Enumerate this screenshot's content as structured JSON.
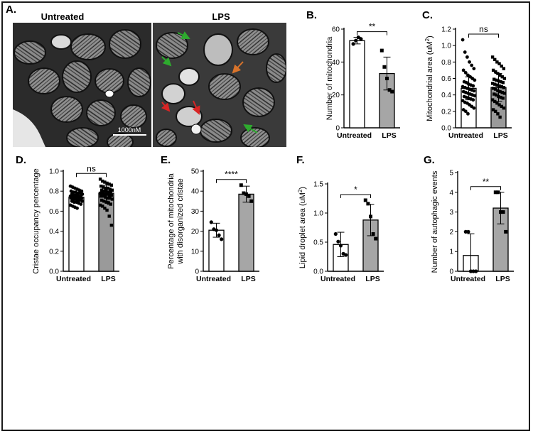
{
  "micrograph": {
    "panel_label": "A.",
    "left_title": "Untreated",
    "right_title": "LPS",
    "scale_bar": "1000nM"
  },
  "chart_data": [
    {
      "panel": "B.",
      "type": "bar",
      "categories": [
        "Untreated",
        "LPS"
      ],
      "values": [
        53,
        33
      ],
      "error": [
        2,
        10
      ],
      "points": [
        [
          51,
          53,
          55,
          54
        ],
        [
          47,
          37,
          30,
          23,
          22
        ]
      ],
      "ylabel": "Number of mitochondria",
      "yticks": [
        0,
        20,
        40,
        60
      ],
      "ylim": [
        0,
        60
      ],
      "significance": "**"
    },
    {
      "panel": "C.",
      "type": "bar",
      "categories": [
        "Untreated",
        "LPS"
      ],
      "values": [
        0.48,
        0.49
      ],
      "error": [
        0.14,
        0.17
      ],
      "points": [
        [
          1.07,
          0.92,
          0.86,
          0.8,
          0.76,
          0.72,
          0.7,
          0.67,
          0.64,
          0.62,
          0.6,
          0.58,
          0.56,
          0.55,
          0.53,
          0.52,
          0.51,
          0.5,
          0.49,
          0.48,
          0.47,
          0.46,
          0.45,
          0.44,
          0.43,
          0.42,
          0.41,
          0.4,
          0.39,
          0.38,
          0.37,
          0.36,
          0.35,
          0.34,
          0.33,
          0.31,
          0.3,
          0.28,
          0.26,
          0.24,
          0.22,
          0.2,
          0.17
        ],
        [
          0.86,
          0.83,
          0.8,
          0.78,
          0.75,
          0.72,
          0.7,
          0.68,
          0.66,
          0.64,
          0.62,
          0.6,
          0.59,
          0.58,
          0.57,
          0.56,
          0.55,
          0.54,
          0.53,
          0.52,
          0.51,
          0.5,
          0.49,
          0.48,
          0.47,
          0.45,
          0.44,
          0.43,
          0.42,
          0.41,
          0.4,
          0.38,
          0.37,
          0.36,
          0.34,
          0.32,
          0.3,
          0.28,
          0.26,
          0.24,
          0.22,
          0.2,
          0.17,
          0.13
        ]
      ],
      "ylabel_parts": [
        "Mitochondrial area (uM",
        "2",
        ")"
      ],
      "yticks": [
        0.0,
        0.2,
        0.4,
        0.6,
        0.8,
        1.0,
        1.2
      ],
      "ylim": [
        0,
        1.2
      ],
      "significance": "ns"
    },
    {
      "panel": "D.",
      "type": "bar",
      "categories": [
        "Untreated",
        "LPS"
      ],
      "values": [
        0.74,
        0.78
      ],
      "error": [
        0.05,
        0.08
      ],
      "points": [
        [
          0.85,
          0.84,
          0.83,
          0.82,
          0.81,
          0.8,
          0.8,
          0.79,
          0.79,
          0.78,
          0.78,
          0.77,
          0.77,
          0.76,
          0.76,
          0.75,
          0.75,
          0.75,
          0.74,
          0.74,
          0.74,
          0.73,
          0.73,
          0.73,
          0.72,
          0.72,
          0.71,
          0.71,
          0.7,
          0.7,
          0.69,
          0.69,
          0.68,
          0.67,
          0.66,
          0.65,
          0.64,
          0.63
        ],
        [
          0.92,
          0.9,
          0.89,
          0.88,
          0.87,
          0.86,
          0.85,
          0.84,
          0.83,
          0.83,
          0.82,
          0.81,
          0.81,
          0.8,
          0.8,
          0.79,
          0.79,
          0.78,
          0.78,
          0.77,
          0.77,
          0.76,
          0.76,
          0.75,
          0.75,
          0.74,
          0.73,
          0.73,
          0.72,
          0.71,
          0.7,
          0.69,
          0.68,
          0.67,
          0.66,
          0.65,
          0.63,
          0.61,
          0.55,
          0.46
        ]
      ],
      "ylabel": "Cristae occupancy percentage",
      "yticks": [
        0.0,
        0.2,
        0.4,
        0.6,
        0.8,
        1.0
      ],
      "ylim": [
        0,
        1.0
      ],
      "significance": "ns"
    },
    {
      "panel": "E.",
      "type": "bar",
      "categories": [
        "Untreated",
        "LPS"
      ],
      "values": [
        20.5,
        38.5
      ],
      "error": [
        3.5,
        4
      ],
      "points": [
        [
          24.5,
          21,
          20.5,
          18,
          16
        ],
        [
          43,
          39,
          38.5,
          37.5,
          35
        ]
      ],
      "ylabel_lines": [
        "Percentage of mitochondria",
        "with disorganized cristae"
      ],
      "yticks": [
        0,
        10,
        20,
        30,
        40,
        50
      ],
      "ylim": [
        0,
        50
      ],
      "significance": "****"
    },
    {
      "panel": "F.",
      "type": "bar",
      "categories": [
        "Untreated",
        "LPS"
      ],
      "values": [
        0.46,
        0.88
      ],
      "error": [
        0.21,
        0.27
      ],
      "points": [
        [
          0.64,
          0.51,
          0.44,
          0.3,
          0.28
        ],
        [
          1.22,
          1.16,
          0.94,
          0.64,
          0.56
        ]
      ],
      "ylabel_parts": [
        "Lipid droplet area (uM",
        "2",
        ")"
      ],
      "yticks": [
        0.0,
        0.5,
        1.0,
        1.5
      ],
      "ylim": [
        0,
        1.5
      ],
      "significance": "*"
    },
    {
      "panel": "G.",
      "type": "bar",
      "categories": [
        "Untreated",
        "LPS"
      ],
      "values": [
        0.8,
        3.2
      ],
      "error": [
        1.1,
        0.8
      ],
      "points": [
        [
          2,
          2,
          0,
          0,
          0
        ],
        [
          4,
          4,
          3,
          3,
          2
        ]
      ],
      "ylabel": "Number of autophagic events",
      "yticks": [
        0,
        1,
        2,
        3,
        4,
        5
      ],
      "ylim": [
        0,
        5
      ],
      "significance": "**"
    }
  ],
  "colors": {
    "untreated_fill": "#ffffff",
    "lps_fill": "#a6a6a6",
    "lps_fill_dense": "#9a9a9a",
    "axis": "#000000",
    "arrow_green": "#2eab2e",
    "arrow_orange": "#d9742b",
    "arrow_red": "#d92525"
  }
}
